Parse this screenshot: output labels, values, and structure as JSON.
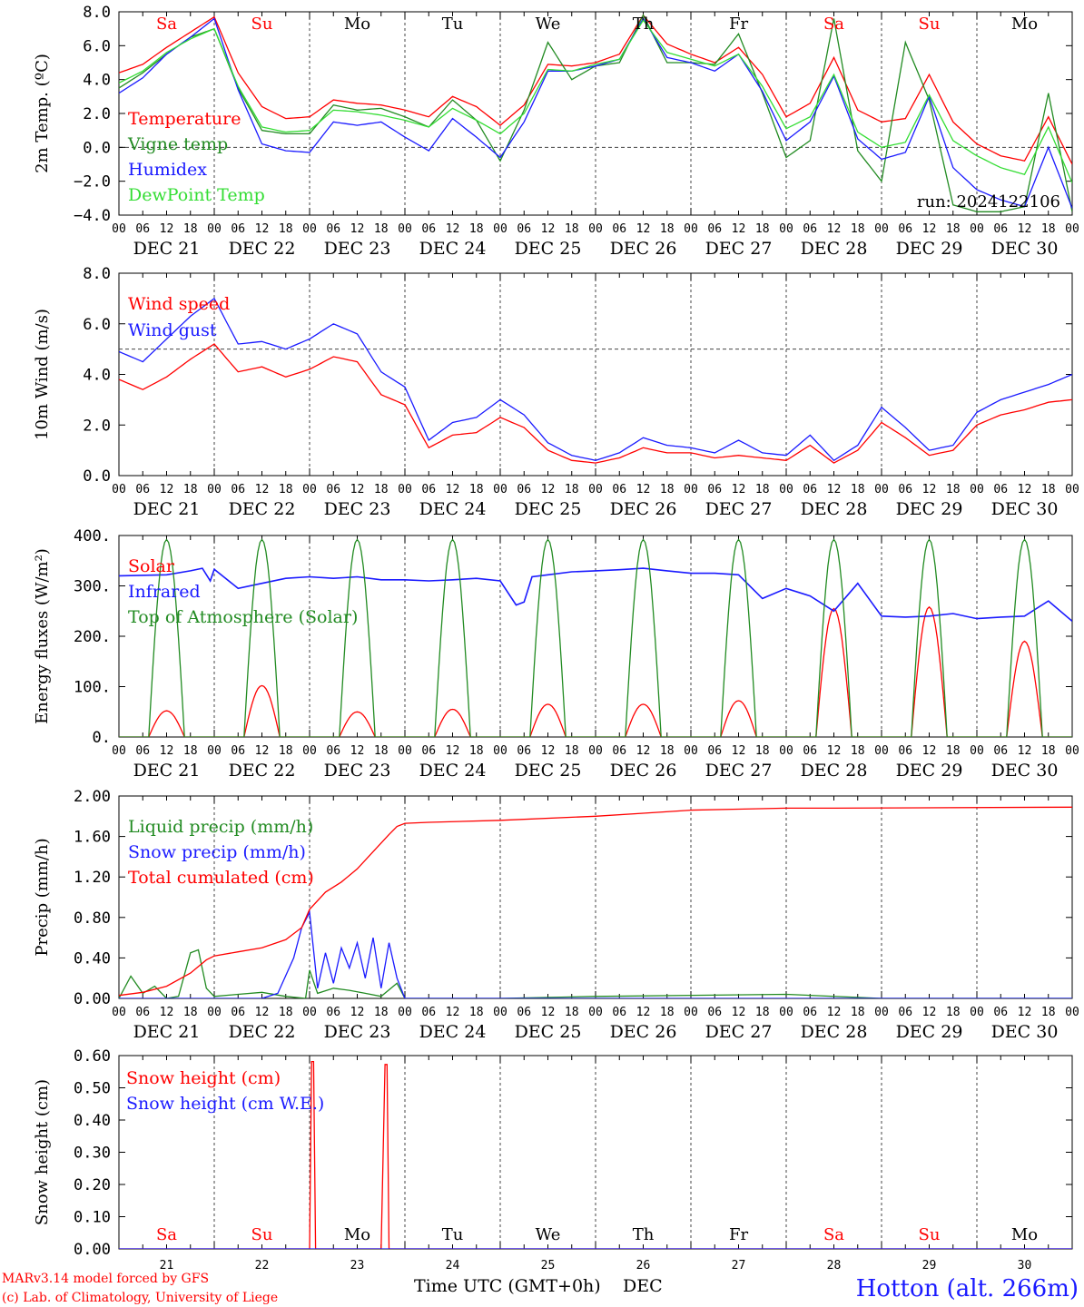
{
  "page": {
    "footer_left_1": "MARv3.14 model forced by GFS",
    "footer_left_2": "(c) Lab. of Climatology, University of Liege",
    "xaxis_title": "Time UTC (GMT+0h)",
    "xaxis_month": "DEC",
    "station": "Hotton (alt. 266m)",
    "run_label": "run: 2024122106"
  },
  "colors": {
    "red": "#ff0000",
    "dark_green": "#228b22",
    "blue": "#1a1aff",
    "light_green": "#33dd33",
    "weekend": "#ff0000",
    "weekday": "#000000"
  },
  "days": {
    "weekday_names": [
      "Sa",
      "Su",
      "Mo",
      "Tu",
      "We",
      "Th",
      "Fr",
      "Sa",
      "Su",
      "Mo"
    ],
    "weekend_flags": [
      true,
      true,
      false,
      false,
      false,
      false,
      false,
      true,
      true,
      false
    ],
    "date_labels": [
      "DEC 21",
      "DEC 22",
      "DEC 23",
      "DEC 24",
      "DEC 25",
      "DEC 26",
      "DEC 27",
      "DEC 28",
      "DEC 29",
      "DEC 30"
    ],
    "day_numbers": [
      "21",
      "22",
      "23",
      "24",
      "25",
      "26",
      "27",
      "28",
      "29",
      "30"
    ],
    "hour_ticks": [
      "00",
      "06",
      "12",
      "18"
    ],
    "last_tick": "00"
  },
  "chart_data": [
    {
      "id": "temp",
      "type": "line",
      "ylabel": "2m Temp. (ºC)",
      "ylim": [
        -4,
        8
      ],
      "yticks": [
        "−4.0",
        "−2.0",
        "0.0",
        "2.0",
        "4.0",
        "6.0",
        "8.0"
      ],
      "ref_line": 0,
      "hours": [
        0,
        6,
        12,
        18,
        24,
        30,
        36,
        42,
        48,
        54,
        60,
        66,
        72,
        78,
        84,
        90,
        96,
        102,
        108,
        114,
        120,
        126,
        132,
        138,
        144,
        150,
        156,
        162,
        168,
        174,
        180,
        186,
        192,
        198,
        204,
        210,
        216,
        222,
        228,
        234,
        240
      ],
      "series": [
        {
          "name": "Temperature",
          "color": "#ff0000",
          "values": [
            4.4,
            4.9,
            5.9,
            6.8,
            7.7,
            4.4,
            2.4,
            1.7,
            1.8,
            2.8,
            2.6,
            2.5,
            2.2,
            1.8,
            3.0,
            2.4,
            1.3,
            2.5,
            4.9,
            4.8,
            5.0,
            5.5,
            7.8,
            6.1,
            5.5,
            5.0,
            5.9,
            4.3,
            1.8,
            2.6,
            5.3,
            2.2,
            1.5,
            1.7,
            4.3,
            1.5,
            0.2,
            -0.5,
            -0.8,
            1.8,
            -1.0
          ]
        },
        {
          "name": "Vigne temp",
          "color": "#228b22",
          "values": [
            3.5,
            4.4,
            5.5,
            6.5,
            7.0,
            3.5,
            1.0,
            0.8,
            0.8,
            2.5,
            2.2,
            2.3,
            1.8,
            1.2,
            2.8,
            1.6,
            -0.8,
            2.2,
            6.2,
            4.0,
            4.8,
            5.0,
            7.8,
            5.0,
            5.0,
            4.9,
            6.7,
            3.2,
            -0.6,
            0.4,
            7.6,
            -0.2,
            -2.0,
            6.2,
            2.8,
            -3.4,
            -3.8,
            -3.8,
            -3.5,
            3.2,
            -3.8
          ]
        },
        {
          "name": "Humidex",
          "color": "#1a1aff",
          "values": [
            3.2,
            4.1,
            5.5,
            6.5,
            7.6,
            3.4,
            0.2,
            -0.2,
            -0.3,
            1.5,
            1.3,
            1.5,
            0.6,
            -0.2,
            1.7,
            0.6,
            -0.6,
            1.5,
            4.5,
            4.5,
            4.8,
            5.2,
            7.6,
            5.3,
            5.0,
            4.5,
            5.5,
            3.3,
            0.4,
            1.5,
            4.2,
            0.5,
            -0.7,
            -0.3,
            3.0,
            -1.2,
            -2.5,
            -3.1,
            -3.5,
            0.0,
            -3.6
          ]
        },
        {
          "name": "DewPoint Temp",
          "color": "#33dd33",
          "values": [
            3.8,
            4.5,
            5.6,
            6.4,
            7.0,
            3.6,
            1.2,
            0.9,
            1.0,
            2.2,
            2.1,
            1.9,
            1.6,
            1.2,
            2.3,
            1.6,
            0.8,
            2.0,
            4.6,
            4.5,
            4.9,
            5.2,
            7.5,
            5.6,
            5.2,
            4.8,
            5.5,
            3.6,
            1.1,
            1.8,
            4.3,
            0.9,
            0.0,
            0.3,
            3.1,
            0.4,
            -0.5,
            -1.2,
            -1.6,
            1.2,
            -2.1
          ]
        }
      ]
    },
    {
      "id": "wind",
      "type": "line",
      "ylabel": "10m Wind (m/s)",
      "ylim": [
        0,
        8
      ],
      "yticks": [
        "0.0",
        "2.0",
        "4.0",
        "6.0",
        "8.0"
      ],
      "ref_line": 5,
      "hours": [
        0,
        6,
        12,
        18,
        24,
        30,
        36,
        42,
        48,
        54,
        60,
        66,
        72,
        78,
        84,
        90,
        96,
        102,
        108,
        114,
        120,
        126,
        132,
        138,
        144,
        150,
        156,
        162,
        168,
        174,
        180,
        186,
        192,
        198,
        204,
        210,
        216,
        222,
        228,
        234,
        240
      ],
      "series": [
        {
          "name": "Wind speed",
          "color": "#ff0000",
          "values": [
            3.8,
            3.4,
            3.9,
            4.6,
            5.2,
            4.1,
            4.3,
            3.9,
            4.2,
            4.7,
            4.5,
            3.2,
            2.8,
            1.1,
            1.6,
            1.7,
            2.3,
            1.9,
            1.0,
            0.6,
            0.5,
            0.7,
            1.1,
            0.9,
            0.9,
            0.7,
            0.8,
            0.7,
            0.6,
            1.2,
            0.5,
            1.0,
            2.1,
            1.5,
            0.8,
            1.0,
            2.0,
            2.4,
            2.6,
            2.9,
            3.0
          ]
        },
        {
          "name": "Wind gust",
          "color": "#1a1aff",
          "values": [
            4.9,
            4.5,
            5.4,
            6.3,
            7.0,
            5.2,
            5.3,
            5.0,
            5.4,
            6.0,
            5.6,
            4.1,
            3.5,
            1.4,
            2.1,
            2.3,
            3.0,
            2.4,
            1.3,
            0.8,
            0.6,
            0.9,
            1.5,
            1.2,
            1.1,
            0.9,
            1.4,
            0.9,
            0.8,
            1.6,
            0.6,
            1.2,
            2.7,
            1.9,
            1.0,
            1.2,
            2.5,
            3.0,
            3.3,
            3.6,
            4.0
          ]
        }
      ]
    },
    {
      "id": "energy",
      "type": "line",
      "ylabel": "Energy fluxes (W/m²)",
      "ylim": [
        0,
        400
      ],
      "yticks": [
        "0.",
        "100.",
        "200.",
        "300.",
        "400."
      ],
      "series": [
        {
          "name": "Solar",
          "color": "#ff0000",
          "day_peaks": [
            52,
            102,
            50,
            55,
            65,
            65,
            72,
            255,
            258,
            190
          ],
          "peak_hour": 12,
          "half_width_hours": 4.5
        },
        {
          "name": "Infrared",
          "color": "#1a1aff",
          "hours": [
            0,
            12,
            18,
            21,
            23,
            24,
            30,
            36,
            42,
            48,
            54,
            60,
            66,
            72,
            78,
            84,
            90,
            96,
            100,
            102,
            104,
            108,
            114,
            120,
            126,
            132,
            138,
            144,
            150,
            156,
            162,
            168,
            174,
            180,
            186,
            192,
            198,
            204,
            210,
            216,
            222,
            228,
            234,
            240
          ],
          "values": [
            320,
            322,
            330,
            335,
            310,
            333,
            295,
            305,
            315,
            318,
            315,
            318,
            312,
            312,
            310,
            312,
            315,
            310,
            262,
            268,
            318,
            322,
            328,
            330,
            332,
            335,
            330,
            325,
            325,
            322,
            275,
            295,
            280,
            250,
            305,
            240,
            238,
            240,
            245,
            235,
            238,
            240,
            270,
            230
          ]
        },
        {
          "name": "Top of Atmosphere (Solar)",
          "color": "#228b22",
          "day_peaks": [
            392,
            392,
            392,
            392,
            392,
            392,
            392,
            392,
            392,
            392
          ],
          "peak_hour": 12,
          "half_width_hours": 4.5
        }
      ]
    },
    {
      "id": "precip",
      "type": "line",
      "ylabel": "Precip (mm/h)",
      "ylim": [
        0,
        2
      ],
      "yticks": [
        "0.00",
        "0.40",
        "0.80",
        "1.20",
        "1.60",
        "2.00"
      ],
      "series": [
        {
          "name": "Liquid precip (mm/h)",
          "color": "#228b22",
          "hours": [
            0,
            3,
            6,
            9,
            12,
            15,
            18,
            20,
            22,
            24,
            30,
            36,
            42,
            47,
            48,
            50,
            54,
            58,
            62,
            66,
            70,
            72,
            96,
            120,
            168,
            192,
            240
          ],
          "values": [
            0.0,
            0.22,
            0.05,
            0.12,
            0.0,
            0.02,
            0.45,
            0.48,
            0.1,
            0.02,
            0.04,
            0.06,
            0.02,
            0.0,
            0.28,
            0.05,
            0.1,
            0.08,
            0.05,
            0.02,
            0.15,
            0.0,
            0.0,
            0.02,
            0.04,
            0.0,
            0.0
          ]
        },
        {
          "name": "Snow precip (mm/h)",
          "color": "#1a1aff",
          "hours": [
            0,
            36,
            40,
            44,
            46,
            48,
            50,
            52,
            54,
            56,
            58,
            60,
            62,
            64,
            66,
            68,
            70,
            72,
            96,
            240
          ],
          "values": [
            0.0,
            0.0,
            0.05,
            0.4,
            0.7,
            0.85,
            0.1,
            0.45,
            0.15,
            0.5,
            0.3,
            0.55,
            0.2,
            0.6,
            0.1,
            0.55,
            0.2,
            0.0,
            0.0,
            0.0
          ]
        },
        {
          "name": "Total cumulated (cm)",
          "color": "#ff0000",
          "hours": [
            0,
            6,
            12,
            18,
            22,
            24,
            30,
            36,
            42,
            46,
            48,
            52,
            56,
            60,
            64,
            68,
            70,
            72,
            78,
            96,
            120,
            132,
            144,
            156,
            168,
            180,
            240
          ],
          "values": [
            0.03,
            0.06,
            0.12,
            0.25,
            0.38,
            0.42,
            0.46,
            0.5,
            0.58,
            0.7,
            0.88,
            1.05,
            1.15,
            1.28,
            1.45,
            1.62,
            1.7,
            1.73,
            1.74,
            1.76,
            1.8,
            1.83,
            1.86,
            1.87,
            1.88,
            1.88,
            1.89
          ]
        }
      ]
    },
    {
      "id": "snow",
      "type": "line",
      "ylabel": "Snow height (cm)",
      "ylim": [
        0,
        0.65
      ],
      "yticks": [
        "0.00",
        "0.10",
        "0.20",
        "0.30",
        "0.40",
        "0.50",
        "0.60"
      ],
      "series": [
        {
          "name": "Snow height (cm)",
          "color": "#ff0000",
          "hours": [
            0,
            48,
            48.5,
            49,
            49.5,
            66,
            67,
            67.5,
            68,
            240
          ],
          "values": [
            0,
            0,
            0.63,
            0.63,
            0,
            0,
            0.62,
            0.62,
            0,
            0
          ]
        },
        {
          "name": "Snow height (cm W.E.)",
          "color": "#1a1aff",
          "hours": [
            0,
            240
          ],
          "values": [
            0,
            0
          ]
        }
      ]
    }
  ]
}
